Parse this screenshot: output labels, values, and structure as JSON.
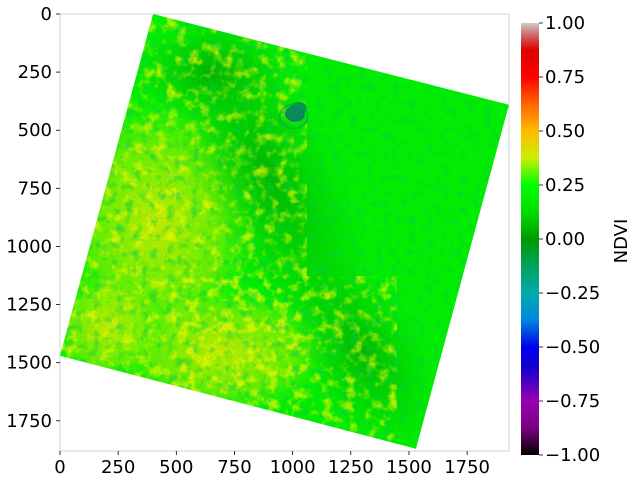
{
  "chart_data": {
    "type": "heatmap",
    "title": "",
    "xlabel": "",
    "ylabel": "",
    "x_ticks": [
      0,
      250,
      500,
      750,
      1000,
      1250,
      1500,
      1750
    ],
    "x_tick_labels": [
      "0",
      "250",
      "500",
      "750",
      "1000",
      "1250",
      "1500",
      "1750"
    ],
    "y_ticks": [
      0,
      250,
      500,
      750,
      1000,
      1250,
      1500,
      1750
    ],
    "y_tick_labels": [
      "0",
      "250",
      "500",
      "750",
      "1000",
      "1250",
      "1500",
      "1750"
    ],
    "xlim": [
      0,
      1930
    ],
    "ylim": [
      1880,
      0
    ],
    "colorbar": {
      "label": "NDVI",
      "range": [
        -1.0,
        1.0
      ],
      "ticks": [
        1.0,
        0.75,
        0.5,
        0.25,
        0.0,
        -0.25,
        -0.5,
        -0.75,
        -1.0
      ],
      "tick_labels": [
        "1.00",
        "0.75",
        "0.50",
        "0.25",
        "0.00",
        "−0.25",
        "−0.50",
        "−0.75",
        "−1.00"
      ],
      "colormap_stops": [
        {
          "value": -1.0,
          "color": "#000000"
        },
        {
          "value": -0.875,
          "color": "#7a0080"
        },
        {
          "value": -0.75,
          "color": "#9a00b0"
        },
        {
          "value": -0.6,
          "color": "#1500cc"
        },
        {
          "value": -0.5,
          "color": "#0000ee"
        },
        {
          "value": -0.375,
          "color": "#0088dd"
        },
        {
          "value": -0.25,
          "color": "#00aaaa"
        },
        {
          "value": -0.125,
          "color": "#00a25e"
        },
        {
          "value": 0.0,
          "color": "#009900"
        },
        {
          "value": 0.125,
          "color": "#00dd00"
        },
        {
          "value": 0.25,
          "color": "#00ff00"
        },
        {
          "value": 0.375,
          "color": "#cbee00"
        },
        {
          "value": 0.5,
          "color": "#ffbb00"
        },
        {
          "value": 0.625,
          "color": "#ff6600"
        },
        {
          "value": 0.75,
          "color": "#ff0000"
        },
        {
          "value": 0.875,
          "color": "#dd0000"
        },
        {
          "value": 0.94,
          "color": "#d06060"
        },
        {
          "value": 1.0,
          "color": "#cccccc"
        }
      ]
    },
    "scene_footprint_corners": [
      [
        400,
        0
      ],
      [
        1930,
        390
      ],
      [
        1530,
        1870
      ],
      [
        0,
        1470
      ]
    ],
    "dominant_colors": {
      "background_vegetation": "#00ee00",
      "dense_vegetation": "#00b000",
      "sparse_vegetation": "#d8ec00",
      "water": "#0a8a5a"
    }
  }
}
